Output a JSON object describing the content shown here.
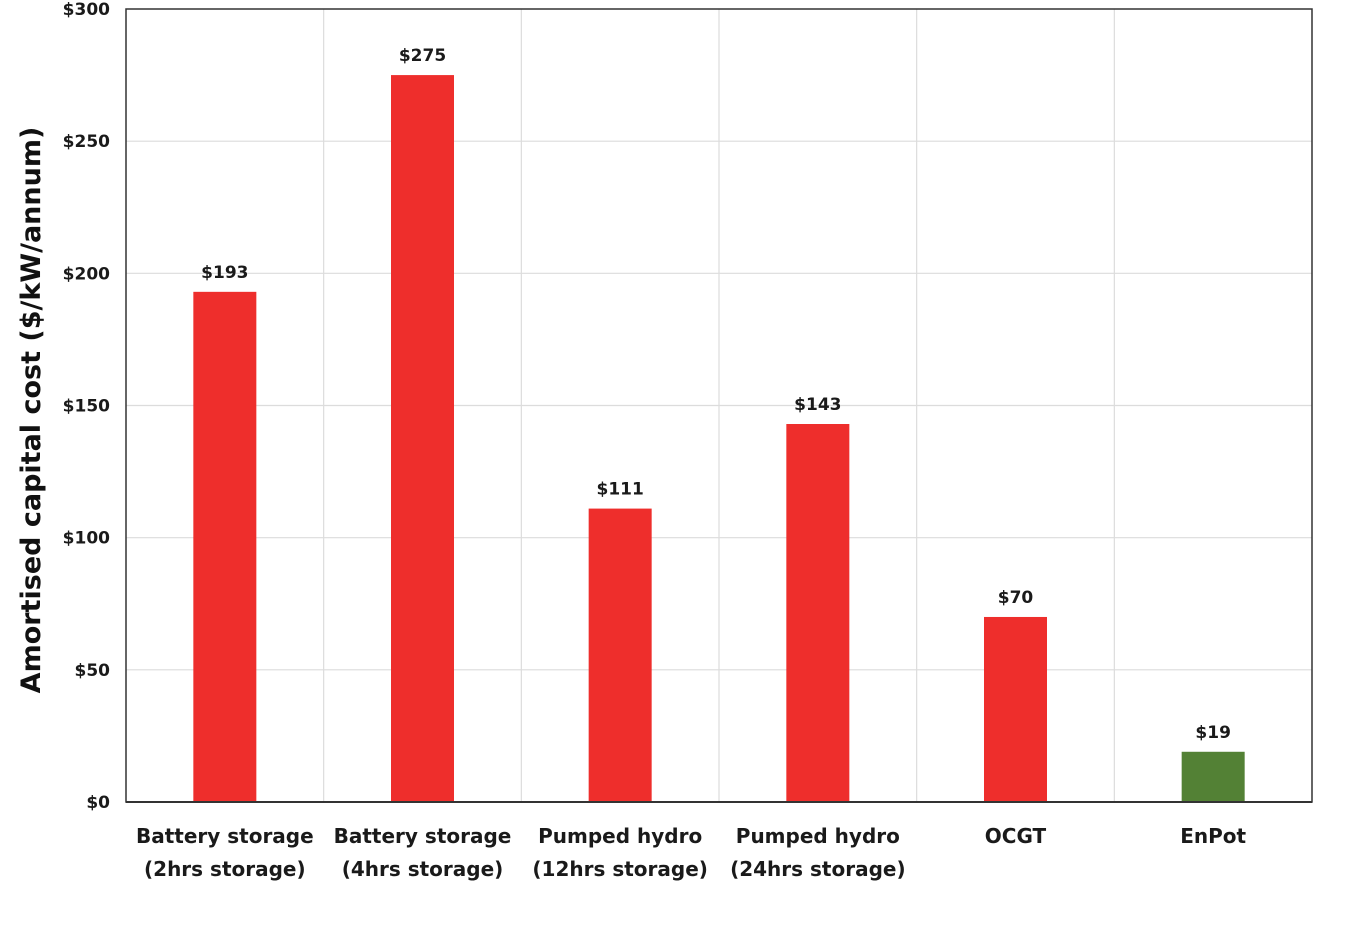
{
  "chart_data": {
    "type": "bar",
    "title": "",
    "xlabel": "",
    "ylabel": "Amortised capital cost ($/kW/annum)",
    "ylim": [
      0,
      300
    ],
    "yticks": [
      {
        "value": 0,
        "label": "$0"
      },
      {
        "value": 50,
        "label": "$50"
      },
      {
        "value": 100,
        "label": "$100"
      },
      {
        "value": 150,
        "label": "$150"
      },
      {
        "value": 200,
        "label": "$200"
      },
      {
        "value": 250,
        "label": "$250"
      },
      {
        "value": 300,
        "label": "$300"
      }
    ],
    "categories": [
      [
        "Battery storage",
        "(2hrs storage)"
      ],
      [
        "Battery storage",
        "(4hrs storage)"
      ],
      [
        "Pumped hydro",
        "(12hrs storage)"
      ],
      [
        "Pumped hydro",
        "(24hrs storage)"
      ],
      [
        "OCGT"
      ],
      [
        "EnPot"
      ]
    ],
    "values": [
      193,
      275,
      111,
      143,
      70,
      19
    ],
    "data_labels": [
      "$193",
      "$275",
      "$111",
      "$143",
      "$70",
      "$19"
    ],
    "colors": [
      "#ee2e2c",
      "#ee2e2c",
      "#ee2e2c",
      "#ee2e2c",
      "#ee2e2c",
      "#538135"
    ],
    "grid": true,
    "legend": "none"
  }
}
